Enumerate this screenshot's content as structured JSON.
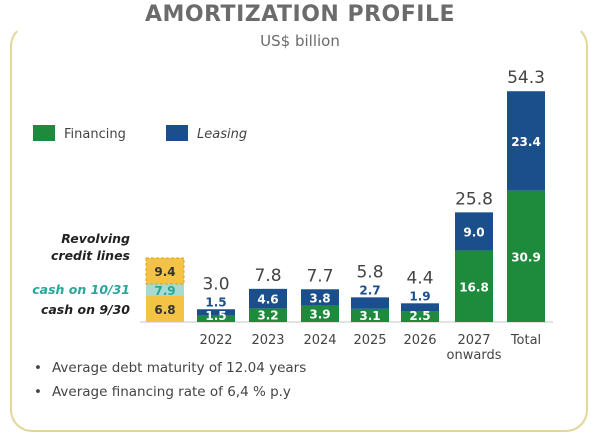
{
  "header": {
    "title": "AMORTIZATION PROFILE",
    "subtitle": "US$ billion"
  },
  "chart_data": {
    "type": "bar",
    "stacked": true,
    "categories": [
      "2022",
      "2023",
      "2024",
      "2025",
      "2026",
      "2027 onwards",
      "Total"
    ],
    "category_lines": [
      [
        "2022"
      ],
      [
        "2023"
      ],
      [
        "2024"
      ],
      [
        "2025"
      ],
      [
        "2026"
      ],
      [
        "2027",
        "onwards"
      ],
      [
        "Total"
      ]
    ],
    "series": [
      {
        "name": "Financing",
        "color": "#1e8a3c",
        "values": [
          1.5,
          3.2,
          3.9,
          3.1,
          2.5,
          16.8,
          30.9
        ]
      },
      {
        "name": "Leasing",
        "color": "#1a4f8b",
        "values": [
          1.5,
          4.6,
          3.8,
          2.7,
          1.9,
          9.0,
          23.4
        ]
      }
    ],
    "totals": [
      3.0,
      7.8,
      7.7,
      5.8,
      4.4,
      25.8,
      54.3
    ],
    "legend": {
      "placement": "upper-left",
      "entries": [
        "Financing",
        "Leasing"
      ]
    },
    "liquidity": {
      "label_lines": [
        "Revolving",
        "credit lines"
      ],
      "segments": [
        {
          "label": "cash on 9/30",
          "value": 6.8,
          "color": "#f4c245",
          "label_color": "#222222"
        },
        {
          "label": "cash on 10/31",
          "value": 7.9,
          "color": "#a7dbd2",
          "label_color": "#27a79a"
        },
        {
          "label": "Revolving credit lines",
          "value": 9.4,
          "color": "#f4c245",
          "label_color": "#222222"
        }
      ]
    },
    "ylim": [
      0,
      58
    ]
  },
  "footnotes": [
    "Average debt maturity of 12.04 years",
    "Average financing rate of 6,4 % p.y"
  ]
}
